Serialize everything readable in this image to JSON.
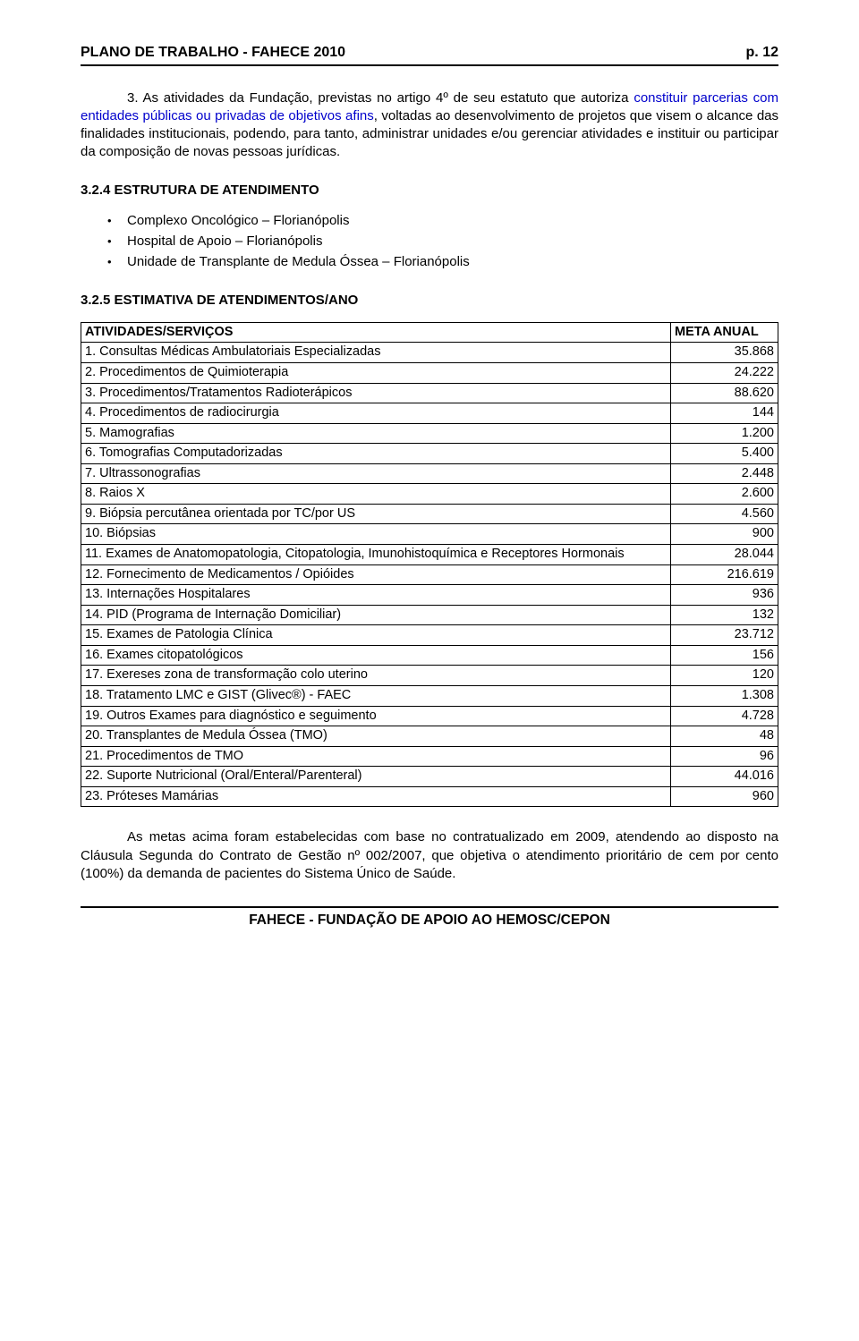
{
  "header": {
    "title": "PLANO DE TRABALHO - FAHECE 2010",
    "page": "p.  12"
  },
  "intro": {
    "prefix": "3. As atividades da Fundação, previstas no artigo 4º de seu estatuto que autoriza ",
    "highlight": "constituir parcerias com entidades públicas ou privadas de objetivos afins",
    "suffix": ", voltadas ao desenvolvimento de projetos que visem o alcance das finalidades institucionais, podendo, para tanto, administrar unidades e/ou gerenciar atividades e instituir ou participar da composição de novas pessoas jurídicas."
  },
  "section_324": {
    "heading": "3.2.4 ESTRUTURA DE ATENDIMENTO",
    "items": [
      "Complexo Oncológico – Florianópolis",
      "Hospital de Apoio – Florianópolis",
      "Unidade de Transplante de Medula Óssea – Florianópolis"
    ]
  },
  "section_325": {
    "heading": "3.2.5 ESTIMATIVA DE ATENDIMENTOS/ANO",
    "table": {
      "col_service": "ATIVIDADES/SERVIÇOS",
      "col_meta": "META ANUAL",
      "rows": [
        {
          "label": "1.  Consultas Médicas Ambulatoriais Especializadas",
          "value": "35.868"
        },
        {
          "label": "2.  Procedimentos de Quimioterapia",
          "value": "24.222"
        },
        {
          "label": "3.  Procedimentos/Tratamentos Radioterápicos",
          "value": "88.620"
        },
        {
          "label": "4.  Procedimentos de radiocirurgia",
          "value": "144"
        },
        {
          "label": "5.  Mamografias",
          "value": "1.200"
        },
        {
          "label": "6.  Tomografias Computadorizadas",
          "value": "5.400"
        },
        {
          "label": "7.  Ultrassonografias",
          "value": "2.448"
        },
        {
          "label": "8.  Raios X",
          "value": "2.600"
        },
        {
          "label": "9.  Biópsia percutânea orientada por TC/por US",
          "value": "4.560"
        },
        {
          "label": "10. Biópsias",
          "value": "900"
        },
        {
          "label": "11. Exames de Anatomopatologia, Citopatologia, Imunohistoquímica e Receptores Hormonais",
          "value": "28.044"
        },
        {
          "label": "12. Fornecimento de Medicamentos / Opióides",
          "value": "216.619"
        },
        {
          "label": "13. Internações Hospitalares",
          "value": "936"
        },
        {
          "label": "14. PID (Programa de Internação Domiciliar)",
          "value": "132"
        },
        {
          "label": "15. Exames de Patologia Clínica",
          "value": "23.712"
        },
        {
          "label": "16. Exames citopatológicos",
          "value": "156"
        },
        {
          "label": "17. Exereses zona de transformação colo uterino",
          "value": "120"
        },
        {
          "label": "18. Tratamento LMC e GIST (Glivec®) - FAEC",
          "value": "1.308"
        },
        {
          "label": "19. Outros Exames para diagnóstico e seguimento",
          "value": "4.728"
        },
        {
          "label": "20. Transplantes de Medula Óssea (TMO)",
          "value": "48"
        },
        {
          "label": "21. Procedimentos de TMO",
          "value": "96"
        },
        {
          "label": "22. Suporte Nutricional (Oral/Enteral/Parenteral)",
          "value": "44.016"
        },
        {
          "label": "23. Próteses Mamárias",
          "value": "960"
        }
      ]
    }
  },
  "closing": "As metas acima foram estabelecidas com base no contratualizado em 2009, atendendo ao disposto na Cláusula Segunda do Contrato de Gestão nº 002/2007, que objetiva o atendimento prioritário de cem por cento (100%) da demanda de pacientes do Sistema Único de Saúde.",
  "footer": "FAHECE - FUNDAÇÃO DE APOIO AO HEMOSC/CEPON"
}
